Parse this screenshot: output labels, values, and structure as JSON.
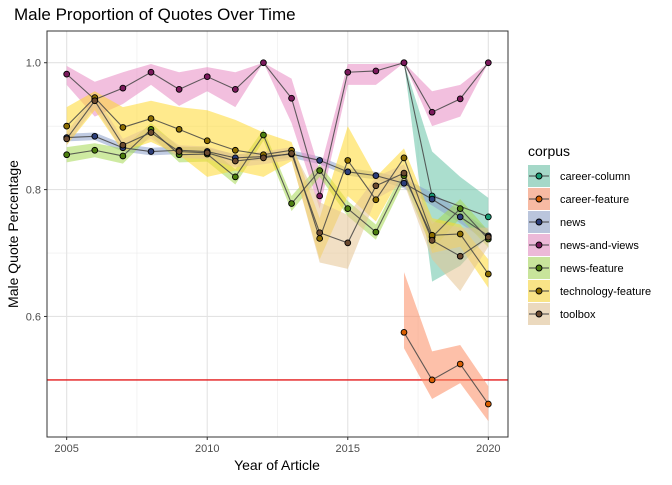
{
  "chart_data": {
    "type": "line",
    "title": "Male Proportion of Quotes Over Time",
    "xlabel": "Year of Article",
    "ylabel": "Male Quote Percentage",
    "xlim": [
      2004.3,
      2020.7
    ],
    "ylim": [
      0.41,
      1.05
    ],
    "x_ticks": [
      2005,
      2010,
      2015,
      2020
    ],
    "x_tick_labels": [
      "2005",
      "2010",
      "2015",
      "2020"
    ],
    "y_ticks": [
      0.6,
      0.8,
      1.0
    ],
    "y_tick_labels": [
      "0.6",
      "0.8",
      "1.0"
    ],
    "grid": true,
    "legend": {
      "title": "corpus",
      "position": "right"
    },
    "reference_line": {
      "y": 0.5,
      "color": "#e41a1c"
    },
    "series": [
      {
        "name": "career-column",
        "color": "#1b9e77",
        "fill": "#66c2a5",
        "points": [
          [
            2017,
            1.0
          ],
          [
            2018,
            0.79
          ],
          [
            2020,
            0.757
          ]
        ],
        "band_upper": [
          [
            2017,
            1.0
          ],
          [
            2018,
            0.86
          ],
          [
            2019,
            0.82
          ],
          [
            2020,
            0.787
          ]
        ],
        "band_lower": [
          [
            2017,
            1.0
          ],
          [
            2018,
            0.655
          ],
          [
            2019,
            0.68
          ],
          [
            2020,
            0.727
          ]
        ]
      },
      {
        "name": "career-feature",
        "color": "#d95f02",
        "fill": "#fc8d62",
        "points": [
          [
            2017,
            0.575
          ],
          [
            2018,
            0.5
          ],
          [
            2019,
            0.525
          ],
          [
            2020,
            0.462
          ]
        ],
        "band_upper": [
          [
            2017,
            0.67
          ],
          [
            2018,
            0.545
          ],
          [
            2019,
            0.555
          ],
          [
            2020,
            0.49
          ]
        ],
        "band_lower": [
          [
            2017,
            0.55
          ],
          [
            2018,
            0.47
          ],
          [
            2019,
            0.495
          ],
          [
            2020,
            0.435
          ]
        ]
      },
      {
        "name": "news",
        "color": "#2c3e7a",
        "fill": "#8da0cb",
        "points": [
          [
            2005,
            0.882
          ],
          [
            2006,
            0.884
          ],
          [
            2007,
            0.866
          ],
          [
            2008,
            0.86
          ],
          [
            2009,
            0.862
          ],
          [
            2010,
            0.86
          ],
          [
            2011,
            0.85
          ],
          [
            2012,
            0.852
          ],
          [
            2013,
            0.856
          ],
          [
            2014,
            0.846
          ],
          [
            2015,
            0.828
          ],
          [
            2016,
            0.822
          ],
          [
            2017,
            0.81
          ],
          [
            2018,
            0.785
          ],
          [
            2019,
            0.757
          ],
          [
            2020,
            0.727
          ]
        ],
        "band_upper": [
          [
            2005,
            0.888
          ],
          [
            2006,
            0.89
          ],
          [
            2007,
            0.872
          ],
          [
            2008,
            0.866
          ],
          [
            2009,
            0.868
          ],
          [
            2010,
            0.866
          ],
          [
            2011,
            0.856
          ],
          [
            2012,
            0.858
          ],
          [
            2013,
            0.862
          ],
          [
            2014,
            0.852
          ],
          [
            2015,
            0.834
          ],
          [
            2016,
            0.828
          ],
          [
            2017,
            0.818
          ],
          [
            2018,
            0.795
          ],
          [
            2019,
            0.767
          ],
          [
            2020,
            0.737
          ]
        ],
        "band_lower": [
          [
            2005,
            0.876
          ],
          [
            2006,
            0.878
          ],
          [
            2007,
            0.86
          ],
          [
            2008,
            0.854
          ],
          [
            2009,
            0.856
          ],
          [
            2010,
            0.854
          ],
          [
            2011,
            0.844
          ],
          [
            2012,
            0.846
          ],
          [
            2013,
            0.85
          ],
          [
            2014,
            0.84
          ],
          [
            2015,
            0.822
          ],
          [
            2016,
            0.816
          ],
          [
            2017,
            0.802
          ],
          [
            2018,
            0.775
          ],
          [
            2019,
            0.747
          ],
          [
            2020,
            0.717
          ]
        ]
      },
      {
        "name": "news-and-views",
        "color": "#7b1a5c",
        "fill": "#e78ac3",
        "points": [
          [
            2005,
            0.982
          ],
          [
            2006,
            0.942
          ],
          [
            2007,
            0.96
          ],
          [
            2008,
            0.985
          ],
          [
            2009,
            0.958
          ],
          [
            2010,
            0.978
          ],
          [
            2011,
            0.958
          ],
          [
            2012,
            1.0
          ],
          [
            2013,
            0.944
          ],
          [
            2014,
            0.79
          ],
          [
            2015,
            0.985
          ],
          [
            2016,
            0.987
          ],
          [
            2017,
            1.0
          ],
          [
            2018,
            0.922
          ],
          [
            2019,
            0.943
          ],
          [
            2020,
            1.0
          ]
        ],
        "band_upper": [
          [
            2005,
            0.995
          ],
          [
            2006,
            0.97
          ],
          [
            2007,
            0.985
          ],
          [
            2008,
            0.998
          ],
          [
            2009,
            0.985
          ],
          [
            2010,
            0.993
          ],
          [
            2011,
            0.985
          ],
          [
            2012,
            1.0
          ],
          [
            2013,
            0.975
          ],
          [
            2014,
            0.83
          ],
          [
            2015,
            0.998
          ],
          [
            2016,
            0.998
          ],
          [
            2017,
            1.0
          ],
          [
            2018,
            0.955
          ],
          [
            2019,
            0.965
          ],
          [
            2020,
            1.0
          ]
        ],
        "band_lower": [
          [
            2005,
            0.965
          ],
          [
            2006,
            0.915
          ],
          [
            2007,
            0.935
          ],
          [
            2008,
            0.965
          ],
          [
            2009,
            0.932
          ],
          [
            2010,
            0.955
          ],
          [
            2011,
            0.93
          ],
          [
            2012,
            1.0
          ],
          [
            2013,
            0.905
          ],
          [
            2014,
            0.77
          ],
          [
            2015,
            0.965
          ],
          [
            2016,
            0.965
          ],
          [
            2017,
            1.0
          ],
          [
            2018,
            0.9
          ],
          [
            2019,
            0.915
          ],
          [
            2020,
            1.0
          ]
        ]
      },
      {
        "name": "news-feature",
        "color": "#4d7f10",
        "fill": "#a6d854",
        "points": [
          [
            2005,
            0.855
          ],
          [
            2006,
            0.862
          ],
          [
            2007,
            0.853
          ],
          [
            2008,
            0.895
          ],
          [
            2009,
            0.855
          ],
          [
            2010,
            0.856
          ],
          [
            2011,
            0.82
          ],
          [
            2012,
            0.886
          ],
          [
            2013,
            0.778
          ],
          [
            2014,
            0.83
          ],
          [
            2015,
            0.77
          ],
          [
            2016,
            0.733
          ],
          [
            2017,
            0.822
          ],
          [
            2018,
            0.725
          ],
          [
            2019,
            0.77
          ],
          [
            2020,
            0.722
          ]
        ],
        "band_upper": [
          [
            2005,
            0.867
          ],
          [
            2006,
            0.873
          ],
          [
            2007,
            0.865
          ],
          [
            2008,
            0.905
          ],
          [
            2009,
            0.867
          ],
          [
            2010,
            0.868
          ],
          [
            2011,
            0.832
          ],
          [
            2012,
            0.895
          ],
          [
            2013,
            0.79
          ],
          [
            2014,
            0.84
          ],
          [
            2015,
            0.782
          ],
          [
            2016,
            0.745
          ],
          [
            2017,
            0.832
          ],
          [
            2018,
            0.745
          ],
          [
            2019,
            0.785
          ],
          [
            2020,
            0.735
          ]
        ],
        "band_lower": [
          [
            2005,
            0.843
          ],
          [
            2006,
            0.851
          ],
          [
            2007,
            0.841
          ],
          [
            2008,
            0.885
          ],
          [
            2009,
            0.843
          ],
          [
            2010,
            0.844
          ],
          [
            2011,
            0.808
          ],
          [
            2012,
            0.877
          ],
          [
            2013,
            0.766
          ],
          [
            2014,
            0.82
          ],
          [
            2015,
            0.758
          ],
          [
            2016,
            0.721
          ],
          [
            2017,
            0.812
          ],
          [
            2018,
            0.705
          ],
          [
            2019,
            0.755
          ],
          [
            2020,
            0.709
          ]
        ]
      },
      {
        "name": "technology-feature",
        "color": "#8c6d00",
        "fill": "#ffd92f",
        "points": [
          [
            2005,
            0.9
          ],
          [
            2006,
            0.945
          ],
          [
            2007,
            0.898
          ],
          [
            2008,
            0.912
          ],
          [
            2009,
            0.895
          ],
          [
            2010,
            0.877
          ],
          [
            2011,
            0.862
          ],
          [
            2012,
            0.855
          ],
          [
            2013,
            0.862
          ],
          [
            2014,
            0.723
          ],
          [
            2015,
            0.846
          ],
          [
            2016,
            0.784
          ],
          [
            2017,
            0.85
          ],
          [
            2018,
            0.728
          ],
          [
            2019,
            0.73
          ],
          [
            2020,
            0.667
          ]
        ],
        "band_upper": [
          [
            2005,
            0.93
          ],
          [
            2006,
            0.955
          ],
          [
            2007,
            0.93
          ],
          [
            2008,
            0.94
          ],
          [
            2009,
            0.93
          ],
          [
            2010,
            0.925
          ],
          [
            2011,
            0.91
          ],
          [
            2012,
            0.89
          ],
          [
            2013,
            0.875
          ],
          [
            2014,
            0.755
          ],
          [
            2015,
            0.9
          ],
          [
            2016,
            0.82
          ],
          [
            2017,
            0.865
          ],
          [
            2018,
            0.755
          ],
          [
            2019,
            0.745
          ],
          [
            2020,
            0.69
          ]
        ],
        "band_lower": [
          [
            2005,
            0.87
          ],
          [
            2006,
            0.925
          ],
          [
            2007,
            0.86
          ],
          [
            2008,
            0.875
          ],
          [
            2009,
            0.855
          ],
          [
            2010,
            0.82
          ],
          [
            2011,
            0.83
          ],
          [
            2012,
            0.82
          ],
          [
            2013,
            0.845
          ],
          [
            2014,
            0.69
          ],
          [
            2015,
            0.79
          ],
          [
            2016,
            0.75
          ],
          [
            2017,
            0.83
          ],
          [
            2018,
            0.7
          ],
          [
            2019,
            0.71
          ],
          [
            2020,
            0.645
          ]
        ]
      },
      {
        "name": "toolbox",
        "color": "#6b4a30",
        "fill": "#e5c494",
        "points": [
          [
            2005,
            0.88
          ],
          [
            2006,
            0.94
          ],
          [
            2007,
            0.87
          ],
          [
            2008,
            0.89
          ],
          [
            2009,
            0.86
          ],
          [
            2010,
            0.858
          ],
          [
            2011,
            0.845
          ],
          [
            2012,
            0.85
          ],
          [
            2013,
            0.857
          ],
          [
            2014,
            0.732
          ],
          [
            2015,
            0.716
          ],
          [
            2016,
            0.806
          ],
          [
            2017,
            0.826
          ],
          [
            2018,
            0.72
          ],
          [
            2019,
            0.695
          ],
          [
            2020,
            0.725
          ]
        ],
        "band_upper": [
          [
            2005,
            0.89
          ],
          [
            2006,
            0.95
          ],
          [
            2007,
            0.88
          ],
          [
            2008,
            0.9
          ],
          [
            2009,
            0.87
          ],
          [
            2010,
            0.868
          ],
          [
            2011,
            0.855
          ],
          [
            2012,
            0.86
          ],
          [
            2013,
            0.867
          ],
          [
            2014,
            0.78
          ],
          [
            2015,
            0.76
          ],
          [
            2016,
            0.82
          ],
          [
            2017,
            0.84
          ],
          [
            2018,
            0.75
          ],
          [
            2019,
            0.74
          ],
          [
            2020,
            0.74
          ]
        ],
        "band_lower": [
          [
            2005,
            0.87
          ],
          [
            2006,
            0.93
          ],
          [
            2007,
            0.86
          ],
          [
            2008,
            0.88
          ],
          [
            2009,
            0.85
          ],
          [
            2010,
            0.848
          ],
          [
            2011,
            0.835
          ],
          [
            2012,
            0.84
          ],
          [
            2013,
            0.847
          ],
          [
            2014,
            0.685
          ],
          [
            2015,
            0.675
          ],
          [
            2016,
            0.785
          ],
          [
            2017,
            0.81
          ],
          [
            2018,
            0.69
          ],
          [
            2019,
            0.64
          ],
          [
            2020,
            0.71
          ]
        ]
      }
    ]
  }
}
